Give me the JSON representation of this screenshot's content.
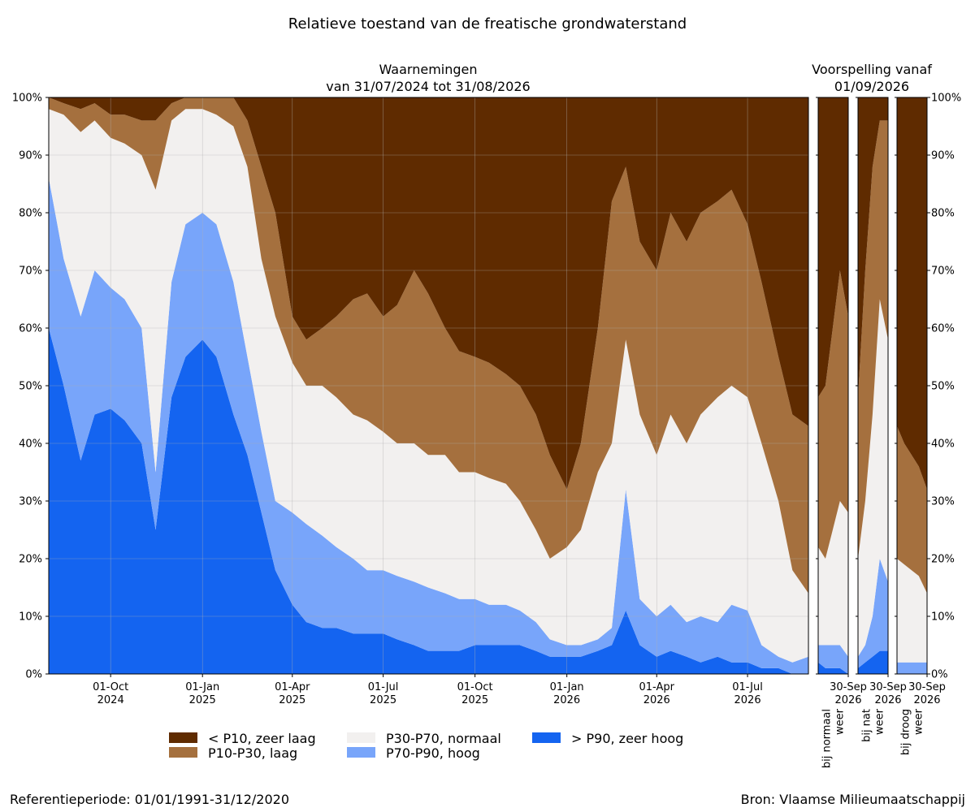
{
  "chart_data": {
    "type": "area",
    "title": "Relatieve toestand van de freatische grondwaterstand",
    "observed_title": "Waarnemingen",
    "observed_range": "van 31/07/2024 tot 31/08/2026",
    "forecast_title": "Voorspelling vanaf",
    "forecast_date": "01/09/2026",
    "ylim": [
      0,
      100
    ],
    "y_tick_labels": [
      "0%",
      "10%",
      "20%",
      "30%",
      "40%",
      "50%",
      "60%",
      "70%",
      "80%",
      "90%",
      "100%"
    ],
    "x_tick_labels": [
      {
        "date": "2024-10-01",
        "month": "01-Oct",
        "year": "2024"
      },
      {
        "date": "2025-01-01",
        "month": "01-Jan",
        "year": "2025"
      },
      {
        "date": "2025-04-01",
        "month": "01-Apr",
        "year": "2025"
      },
      {
        "date": "2025-07-01",
        "month": "01-Jul",
        "year": "2025"
      },
      {
        "date": "2025-10-01",
        "month": "01-Oct",
        "year": "2025"
      },
      {
        "date": "2026-01-01",
        "month": "01-Jan",
        "year": "2026"
      },
      {
        "date": "2026-04-01",
        "month": "01-Apr",
        "year": "2026"
      },
      {
        "date": "2026-07-01",
        "month": "01-Jul",
        "year": "2026"
      }
    ],
    "categories": [
      "> P90, zeer hoog",
      "P70-P90, hoog",
      "P30-P70, normaal",
      "P10-P30, laag",
      "< P10, zeer laag"
    ],
    "colors": {
      "> P90, zeer hoog": "#1464f0",
      "P70-P90, hoog": "#78a5fa",
      "P30-P70, normaal": "#f2f0ef",
      "P10-P30, laag": "#a5703e",
      "< P10, zeer laag": "#5f2b00"
    },
    "note": "cumulative upper boundaries (%) of each class; zeer laag fills to 100%",
    "x": [
      "2024-07-31",
      "2024-08-15",
      "2024-09-01",
      "2024-09-15",
      "2024-10-01",
      "2024-10-15",
      "2024-11-01",
      "2024-11-15",
      "2024-12-01",
      "2024-12-15",
      "2025-01-01",
      "2025-01-15",
      "2025-02-01",
      "2025-02-15",
      "2025-03-01",
      "2025-03-15",
      "2025-04-01",
      "2025-04-15",
      "2025-05-01",
      "2025-05-15",
      "2025-06-01",
      "2025-06-15",
      "2025-07-01",
      "2025-07-15",
      "2025-08-01",
      "2025-08-15",
      "2025-09-01",
      "2025-09-15",
      "2025-10-01",
      "2025-10-15",
      "2025-11-01",
      "2025-11-15",
      "2025-12-01",
      "2025-12-15",
      "2026-01-01",
      "2026-01-15",
      "2026-02-01",
      "2026-02-15",
      "2026-03-01",
      "2026-03-15",
      "2026-04-01",
      "2026-04-15",
      "2026-05-01",
      "2026-05-15",
      "2026-06-01",
      "2026-06-15",
      "2026-07-01",
      "2026-07-15",
      "2026-08-01",
      "2026-08-15",
      "2026-08-31"
    ],
    "series": [
      {
        "name": "> P90, zeer hoog",
        "values": [
          60,
          50,
          37,
          45,
          46,
          44,
          40,
          25,
          48,
          55,
          58,
          55,
          45,
          38,
          28,
          18,
          12,
          9,
          8,
          8,
          7,
          7,
          7,
          6,
          5,
          4,
          4,
          4,
          5,
          5,
          5,
          5,
          4,
          3,
          3,
          3,
          4,
          5,
          11,
          5,
          3,
          4,
          3,
          2,
          3,
          2,
          2,
          1,
          1,
          0,
          0
        ]
      },
      {
        "name": "P70-P90, hoog",
        "values": [
          86,
          72,
          62,
          70,
          67,
          65,
          60,
          35,
          68,
          78,
          80,
          78,
          68,
          55,
          42,
          30,
          28,
          26,
          24,
          22,
          20,
          18,
          18,
          17,
          16,
          15,
          14,
          13,
          13,
          12,
          12,
          11,
          9,
          6,
          5,
          5,
          6,
          8,
          32,
          13,
          10,
          12,
          9,
          10,
          9,
          12,
          11,
          5,
          3,
          2,
          3
        ]
      },
      {
        "name": "P30-P70, normaal",
        "values": [
          98,
          97,
          94,
          96,
          93,
          92,
          90,
          84,
          96,
          98,
          98,
          97,
          95,
          88,
          72,
          62,
          54,
          50,
          50,
          48,
          45,
          44,
          42,
          40,
          40,
          38,
          38,
          35,
          35,
          34,
          33,
          30,
          25,
          20,
          22,
          25,
          35,
          40,
          58,
          45,
          38,
          45,
          40,
          45,
          48,
          50,
          48,
          40,
          30,
          18,
          14
        ]
      },
      {
        "name": "P10-P30, laag",
        "values": [
          100,
          99,
          98,
          99,
          97,
          97,
          96,
          96,
          99,
          100,
          100,
          100,
          100,
          96,
          88,
          80,
          62,
          58,
          60,
          62,
          65,
          66,
          62,
          64,
          70,
          66,
          60,
          56,
          55,
          54,
          52,
          50,
          45,
          38,
          32,
          40,
          60,
          82,
          88,
          75,
          70,
          80,
          75,
          80,
          82,
          84,
          78,
          68,
          55,
          45,
          43
        ]
      },
      {
        "name": "< P10, zeer laag",
        "values": [
          100,
          100,
          100,
          100,
          100,
          100,
          100,
          100,
          100,
          100,
          100,
          100,
          100,
          100,
          100,
          100,
          100,
          100,
          100,
          100,
          100,
          100,
          100,
          100,
          100,
          100,
          100,
          100,
          100,
          100,
          100,
          100,
          100,
          100,
          100,
          100,
          100,
          100,
          100,
          100,
          100,
          100,
          100,
          100,
          100,
          100,
          100,
          100,
          100,
          100,
          100
        ]
      }
    ],
    "forecast_panels": [
      {
        "label_line1": "bij normaal",
        "label_line2": "weer",
        "x_tick": "30-Sep",
        "x_tick_year": "2026",
        "x": [
          "2026-09-01",
          "2026-09-08",
          "2026-09-15",
          "2026-09-22",
          "2026-09-30"
        ],
        "bounds": [
          [
            2,
            1,
            1,
            1,
            0
          ],
          [
            5,
            5,
            5,
            5,
            3
          ],
          [
            22,
            20,
            25,
            30,
            28
          ],
          [
            48,
            50,
            60,
            70,
            62
          ],
          [
            100,
            100,
            100,
            100,
            100
          ]
        ]
      },
      {
        "label_line1": "bij nat",
        "label_line2": "weer",
        "x_tick": "30-Sep",
        "x_tick_year": "2026",
        "x": [
          "2026-09-01",
          "2026-09-08",
          "2026-09-15",
          "2026-09-22",
          "2026-09-30"
        ],
        "bounds": [
          [
            1,
            2,
            3,
            4,
            4
          ],
          [
            3,
            5,
            10,
            20,
            16
          ],
          [
            20,
            30,
            45,
            65,
            58
          ],
          [
            48,
            70,
            88,
            96,
            96
          ],
          [
            100,
            100,
            100,
            100,
            100
          ]
        ]
      },
      {
        "label_line1": "bij droog",
        "label_line2": "weer",
        "x_tick": "30-Sep",
        "x_tick_year": "2026",
        "x": [
          "2026-09-01",
          "2026-09-08",
          "2026-09-15",
          "2026-09-22",
          "2026-09-30"
        ],
        "bounds": [
          [
            0,
            0,
            0,
            0,
            0
          ],
          [
            2,
            2,
            2,
            2,
            2
          ],
          [
            20,
            19,
            18,
            17,
            14
          ],
          [
            43,
            40,
            38,
            36,
            32
          ],
          [
            100,
            100,
            100,
            100,
            100
          ]
        ]
      }
    ],
    "legend": [
      "< P10, zeer laag",
      "P10-P30, laag",
      "P30-P70, normaal",
      "P70-P90, hoog",
      "> P90, zeer hoog"
    ],
    "legend_placement": "bottom-center",
    "grid": true
  },
  "footer": {
    "left": "Referentieperiode: 01/01/1991-31/12/2020",
    "right": "Bron: Vlaamse Milieumaatschappij"
  }
}
